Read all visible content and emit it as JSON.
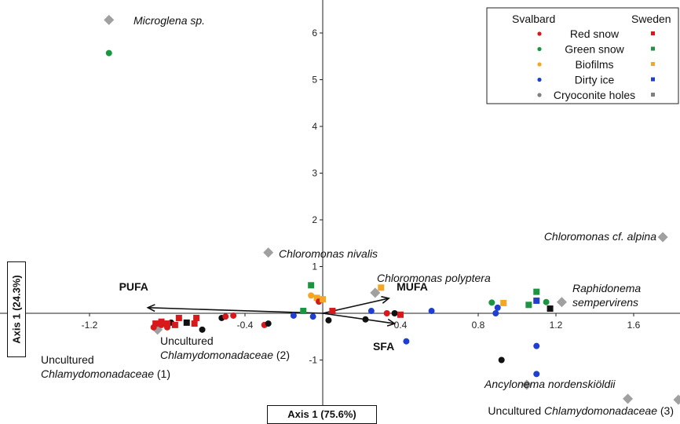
{
  "chart_data": {
    "type": "scatter",
    "x_ticks": [
      -1.2,
      -0.4,
      0.4,
      0.8,
      1.2,
      1.6
    ],
    "x_tick_labels": [
      "-1.2",
      "-0.4",
      "0.4",
      "0.8",
      "1.2",
      "1.6"
    ],
    "y_ticks": [
      -1,
      1,
      2,
      3,
      4,
      5,
      6
    ],
    "y_tick_labels": [
      "-1",
      "1",
      "2",
      "3",
      "4",
      "5",
      "6"
    ],
    "xlim": [
      -1.85,
      1.85
    ],
    "ylim": [
      -1.95,
      6.6
    ],
    "xlabel": "Axis 1 (75.6%)",
    "ylabel": "Axis 1 (24.3%)",
    "colors": {
      "red": "#d7191c",
      "green": "#1a9641",
      "yellow": "#f5a623",
      "blue": "#1f3fd1",
      "black": "#111111",
      "species": "#a0a0a0"
    },
    "legend": {
      "position": "top-right",
      "header_left": "Svalbard",
      "header_right": "Sweden",
      "entries": [
        {
          "label": "Red snow",
          "color": "#d7191c"
        },
        {
          "label": "Green snow",
          "color": "#1a9641"
        },
        {
          "label": "Biofilms",
          "color": "#f5a623"
        },
        {
          "label": "Dirty ice",
          "color": "#1f3fd1"
        },
        {
          "label": "Cryoconite holes",
          "color": "#808080"
        }
      ]
    },
    "species": [
      {
        "x": -1.1,
        "y": 6.28,
        "name": "Microglena sp.",
        "italic": true
      },
      {
        "x": -0.28,
        "y": 1.3,
        "name": "Chloromonas nivalis",
        "italic": true
      },
      {
        "x": 0.27,
        "y": 0.44,
        "name": "Chloromonas polyptera",
        "italic": true
      },
      {
        "x": 1.75,
        "y": 1.63,
        "name": "Chloromonas cf. alpina",
        "italic": true
      },
      {
        "x": 1.23,
        "y": 0.24,
        "name_line1": "Raphidonema",
        "name_line2": "sempervirens",
        "italic": true
      },
      {
        "x": -1.8,
        "y": -0.57,
        "name_line1": "Uncultured",
        "name_line2": "Chlamydomonadaceae",
        "suffix": " (1)"
      },
      {
        "x": -0.85,
        "y": -0.35,
        "name_line1": "Uncultured",
        "name_line2": "Chlamydomonadaceae",
        "suffix": " (2)"
      },
      {
        "x": 1.57,
        "y": -1.83,
        "prefix": "Uncultured ",
        "name": "Chlamydomonadaceae",
        "suffix": " (3)"
      },
      {
        "x": 1.83,
        "y": -1.85
      },
      {
        "x": 1.05,
        "y": -1.53,
        "name": "Ancylonema nordenskiöldii",
        "italic": true
      }
    ],
    "vectors": [
      {
        "label": "PUFA",
        "x": -0.9,
        "y": 0.12
      },
      {
        "label": "MUFA",
        "x": 0.34,
        "y": 0.32
      },
      {
        "label": "SFA",
        "x": 0.37,
        "y": -0.22
      }
    ],
    "points": [
      {
        "x": -1.1,
        "y": 5.57,
        "color": "green",
        "shape": "circle"
      },
      {
        "x": -0.87,
        "y": -0.3,
        "color": "red",
        "shape": "circle"
      },
      {
        "x": -0.83,
        "y": -0.25,
        "color": "red",
        "shape": "circle"
      },
      {
        "x": -0.8,
        "y": -0.3,
        "color": "red",
        "shape": "circle"
      },
      {
        "x": -0.78,
        "y": -0.2,
        "color": "black",
        "shape": "circle"
      },
      {
        "x": -0.86,
        "y": -0.22,
        "color": "red",
        "shape": "square"
      },
      {
        "x": -0.83,
        "y": -0.18,
        "color": "red",
        "shape": "square"
      },
      {
        "x": -0.8,
        "y": -0.22,
        "color": "red",
        "shape": "square"
      },
      {
        "x": -0.76,
        "y": -0.25,
        "color": "red",
        "shape": "square"
      },
      {
        "x": -0.74,
        "y": -0.1,
        "color": "red",
        "shape": "square"
      },
      {
        "x": -0.7,
        "y": -0.2,
        "color": "black",
        "shape": "square"
      },
      {
        "x": -0.66,
        "y": -0.22,
        "color": "red",
        "shape": "square"
      },
      {
        "x": -0.65,
        "y": -0.1,
        "color": "red",
        "shape": "square"
      },
      {
        "x": -0.62,
        "y": -0.35,
        "color": "black",
        "shape": "circle"
      },
      {
        "x": -0.52,
        "y": -0.1,
        "color": "black",
        "shape": "circle"
      },
      {
        "x": -0.5,
        "y": -0.07,
        "color": "red",
        "shape": "circle"
      },
      {
        "x": -0.46,
        "y": -0.05,
        "color": "red",
        "shape": "circle"
      },
      {
        "x": -0.3,
        "y": -0.25,
        "color": "red",
        "shape": "circle"
      },
      {
        "x": -0.28,
        "y": -0.22,
        "color": "black",
        "shape": "circle"
      },
      {
        "x": -0.15,
        "y": -0.05,
        "color": "blue",
        "shape": "circle"
      },
      {
        "x": -0.1,
        "y": 0.05,
        "color": "green",
        "shape": "square"
      },
      {
        "x": -0.06,
        "y": 0.6,
        "color": "green",
        "shape": "square"
      },
      {
        "x": -0.06,
        "y": 0.38,
        "color": "yellow",
        "shape": "circle"
      },
      {
        "x": -0.03,
        "y": 0.33,
        "color": "yellow",
        "shape": "square"
      },
      {
        "x": -0.02,
        "y": 0.25,
        "color": "red",
        "shape": "circle"
      },
      {
        "x": 0.0,
        "y": 0.3,
        "color": "yellow",
        "shape": "square"
      },
      {
        "x": -0.05,
        "y": -0.07,
        "color": "blue",
        "shape": "circle"
      },
      {
        "x": 0.05,
        "y": 0.05,
        "color": "red",
        "shape": "square"
      },
      {
        "x": 0.03,
        "y": -0.15,
        "color": "black",
        "shape": "circle"
      },
      {
        "x": 0.22,
        "y": -0.13,
        "color": "black",
        "shape": "circle"
      },
      {
        "x": 0.25,
        "y": 0.05,
        "color": "blue",
        "shape": "circle"
      },
      {
        "x": 0.3,
        "y": 0.55,
        "color": "yellow",
        "shape": "square"
      },
      {
        "x": 0.33,
        "y": 0.0,
        "color": "red",
        "shape": "circle"
      },
      {
        "x": 0.37,
        "y": 0.0,
        "color": "black",
        "shape": "circle"
      },
      {
        "x": 0.4,
        "y": -0.03,
        "color": "red",
        "shape": "square"
      },
      {
        "x": 0.43,
        "y": -0.6,
        "color": "blue",
        "shape": "circle"
      },
      {
        "x": 0.56,
        "y": 0.05,
        "color": "blue",
        "shape": "circle"
      },
      {
        "x": 0.87,
        "y": 0.23,
        "color": "green",
        "shape": "circle"
      },
      {
        "x": 0.89,
        "y": 0.0,
        "color": "blue",
        "shape": "circle"
      },
      {
        "x": 0.9,
        "y": 0.12,
        "color": "blue",
        "shape": "circle"
      },
      {
        "x": 0.93,
        "y": 0.22,
        "color": "yellow",
        "shape": "square"
      },
      {
        "x": 1.06,
        "y": 0.18,
        "color": "green",
        "shape": "square"
      },
      {
        "x": 1.1,
        "y": 0.46,
        "color": "green",
        "shape": "square"
      },
      {
        "x": 1.1,
        "y": 0.27,
        "color": "blue",
        "shape": "square"
      },
      {
        "x": 1.15,
        "y": 0.24,
        "color": "green",
        "shape": "circle"
      },
      {
        "x": 1.17,
        "y": 0.1,
        "color": "black",
        "shape": "square"
      },
      {
        "x": 1.1,
        "y": -0.7,
        "color": "blue",
        "shape": "circle"
      },
      {
        "x": 1.1,
        "y": -1.3,
        "color": "blue",
        "shape": "circle"
      },
      {
        "x": 0.92,
        "y": -1.0,
        "color": "black",
        "shape": "circle"
      }
    ]
  }
}
